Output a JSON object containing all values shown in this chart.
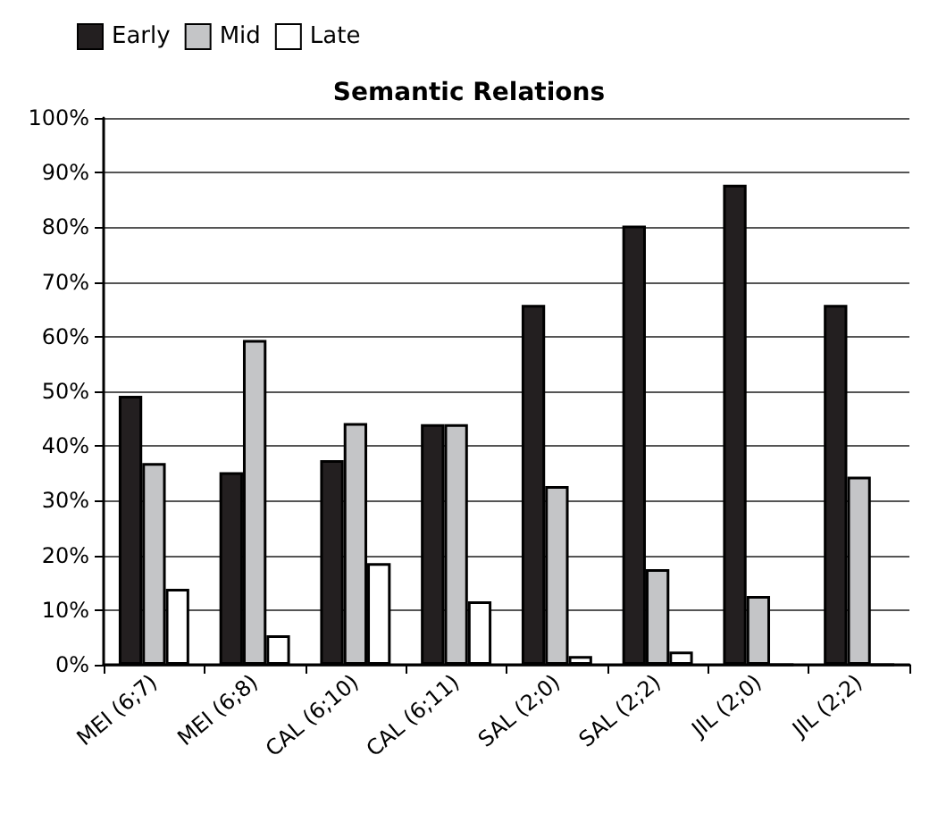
{
  "chart_data": {
    "type": "bar",
    "title": "Semantic Relations",
    "categories": [
      "MEI (6;7)",
      "MEI (6;8)",
      "CAL (6;10)",
      "CAL (6;11)",
      "SAL (2;0)",
      "SAL (2;2)",
      "JIL (2;0)",
      "JIL (2;2)"
    ],
    "series": [
      {
        "name": "Early",
        "color": "#231f20",
        "values": [
          49.2,
          35.2,
          37.4,
          44,
          65.8,
          80.3,
          87.8,
          65.8
        ]
      },
      {
        "name": "Mid",
        "color": "#c4c5c7",
        "values": [
          36.9,
          59.4,
          44.2,
          44,
          32.7,
          17.5,
          12.6,
          34.4
        ]
      },
      {
        "name": "Late",
        "color": "#ffffff",
        "values": [
          13.9,
          5.4,
          18.6,
          11.6,
          1.6,
          2.4,
          0,
          0
        ]
      }
    ],
    "ylim": [
      0,
      100
    ],
    "yticks": [
      {
        "value": 0,
        "label": "0%"
      },
      {
        "value": 10,
        "label": "10%"
      },
      {
        "value": 20,
        "label": "20%"
      },
      {
        "value": 30,
        "label": "30%"
      },
      {
        "value": 40,
        "label": "40%"
      },
      {
        "value": 50,
        "label": "50%"
      },
      {
        "value": 60,
        "label": "60%"
      },
      {
        "value": 70,
        "label": "70%"
      },
      {
        "value": 80,
        "label": "80%"
      },
      {
        "value": 90,
        "label": "90%"
      },
      {
        "value": 100,
        "label": "100%"
      }
    ],
    "grid": "y",
    "legend": "top left"
  }
}
